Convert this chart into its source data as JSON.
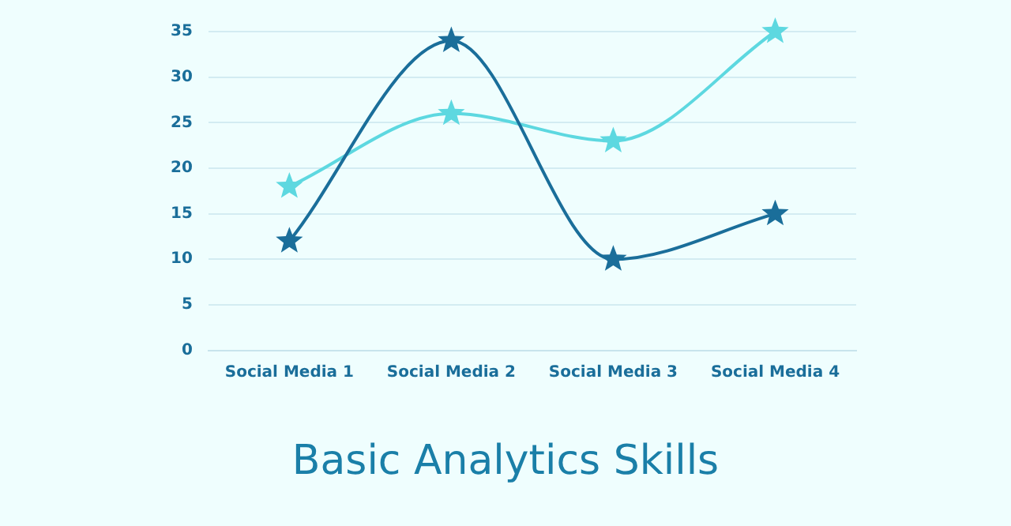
{
  "chart_data": {
    "type": "line",
    "title": "Basic Analytics Skills",
    "categories": [
      "Social Media 1",
      "Social Media 2",
      "Social Media 3",
      "Social Media 4"
    ],
    "series": [
      {
        "color": "#1a6e9a",
        "values": [
          12,
          34,
          10,
          15
        ]
      },
      {
        "color": "#5dd8e0",
        "values": [
          18,
          26,
          23,
          35
        ]
      }
    ],
    "ylim": [
      0,
      35
    ],
    "yticks": [
      0,
      5,
      10,
      15,
      20,
      25,
      30,
      35
    ],
    "grid": "y",
    "legend": false,
    "marker": "star",
    "line_style": "solid"
  }
}
